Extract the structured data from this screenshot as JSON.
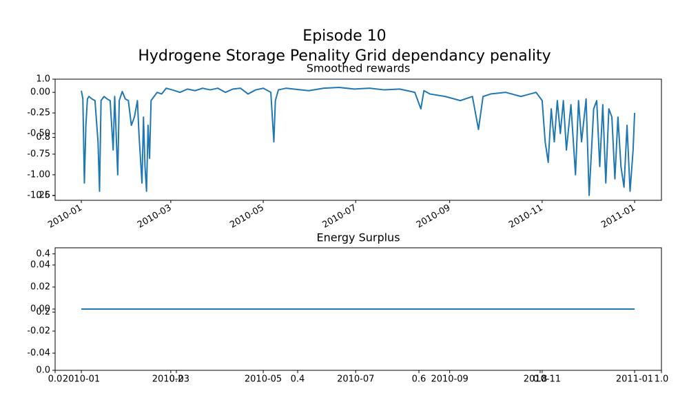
{
  "chart_data": [
    {
      "type": "line",
      "title": "Episode 10",
      "subtitle": "Hydrogene Storage Penality  Grid dependancy penality",
      "xlim": [
        0,
        1
      ],
      "ylim": [
        0,
        1
      ],
      "xticks": [
        {
          "value": 0,
          "label": "0.0"
        },
        0.2,
        0.4,
        0.6,
        0.8,
        {
          "value": 1,
          "label": "1.0"
        }
      ],
      "yticks": [
        {
          "value": 0,
          "label": "0.0"
        },
        0.2,
        0.4,
        0.6,
        0.8,
        {
          "value": 1,
          "label": "1.0"
        }
      ]
    },
    {
      "type": "line",
      "title": "Smoothed rewards",
      "x": [
        0,
        1,
        2,
        3,
        4,
        5,
        7,
        9,
        11,
        12,
        13,
        15,
        17,
        19,
        21,
        22,
        24,
        25,
        27,
        29,
        31,
        33,
        35,
        37,
        38,
        40,
        41,
        42,
        43,
        44,
        45,
        46,
        48,
        50,
        53,
        56,
        60,
        65,
        70,
        75,
        80,
        85,
        90,
        95,
        100,
        105,
        110,
        115,
        120,
        125,
        127,
        128,
        130,
        135,
        140,
        150,
        160,
        170,
        180,
        190,
        200,
        210,
        220,
        224,
        226,
        230,
        240,
        250,
        258,
        262,
        265,
        270,
        280,
        290,
        300,
        304,
        306,
        308,
        310,
        312,
        314,
        316,
        318,
        320,
        323,
        326,
        328,
        330,
        333,
        335,
        338,
        340,
        342,
        344,
        346,
        348,
        350,
        352,
        354,
        356,
        358,
        360,
        362,
        364,
        365
      ],
      "series": [
        {
          "color": "#1f77b4",
          "values": [
            0.02,
            -0.08,
            -1.1,
            -0.4,
            -0.08,
            -0.05,
            -0.08,
            -0.1,
            -0.6,
            -1.2,
            -0.1,
            -0.05,
            -0.08,
            -0.1,
            -0.7,
            -0.05,
            -1.0,
            -0.1,
            0.01,
            -0.08,
            -0.1,
            -0.4,
            -0.3,
            -0.1,
            -0.5,
            -1.1,
            -0.3,
            -0.9,
            -1.2,
            -0.4,
            -0.8,
            -0.1,
            -0.05,
            0.0,
            -0.02,
            0.05,
            0.03,
            0.0,
            0.04,
            0.02,
            0.05,
            0.03,
            0.05,
            0.0,
            0.04,
            0.05,
            -0.02,
            0.03,
            0.05,
            0.0,
            -0.6,
            -0.1,
            0.03,
            0.05,
            0.04,
            0.02,
            0.05,
            0.06,
            0.04,
            0.05,
            0.03,
            0.04,
            0.0,
            -0.2,
            0.02,
            -0.02,
            -0.05,
            -0.1,
            -0.05,
            -0.45,
            -0.05,
            -0.02,
            0.0,
            -0.05,
            0.0,
            -0.1,
            -0.6,
            -0.85,
            -0.2,
            -0.6,
            -0.1,
            -0.5,
            -0.1,
            -0.7,
            -0.15,
            -1.0,
            -0.1,
            -0.6,
            -0.08,
            -1.25,
            -0.2,
            -0.1,
            -0.9,
            -0.15,
            -1.1,
            -0.2,
            -0.3,
            -1.05,
            -0.3,
            -0.9,
            -1.15,
            -0.4,
            -1.2,
            -0.7,
            -0.25
          ]
        }
      ],
      "xlim": [
        -17.3,
        382.7
      ],
      "ylim": [
        -1.31,
        0.16
      ],
      "xticks": [
        {
          "value": 0,
          "label": "2010-01"
        },
        {
          "value": 59,
          "label": "2010-03"
        },
        {
          "value": 120,
          "label": "2010-05"
        },
        {
          "value": 181,
          "label": "2010-07"
        },
        {
          "value": 243,
          "label": "2010-09"
        },
        {
          "value": 304,
          "label": "2010-11"
        },
        {
          "value": 365,
          "label": "2011-01"
        }
      ],
      "yticks": [
        {
          "value": 0,
          "label": "0.00"
        },
        -0.25,
        {
          "value": -0.5,
          "label": "-0.50"
        },
        -0.75,
        {
          "value": -1,
          "label": "-1.00"
        },
        -1.25
      ]
    },
    {
      "type": "line",
      "title": "Energy Surplus",
      "x": [
        0,
        365
      ],
      "series": [
        {
          "color": "#1f77b4",
          "values": [
            0,
            0
          ]
        }
      ],
      "xlim": [
        -17.3,
        382.7
      ],
      "ylim": [
        -0.0556,
        0.0556
      ],
      "xticks": [
        {
          "value": 0,
          "label": "2010-01"
        },
        {
          "value": 59,
          "label": "2010-03"
        },
        {
          "value": 120,
          "label": "2010-05"
        },
        {
          "value": 181,
          "label": "2010-07"
        },
        {
          "value": 243,
          "label": "2010-09"
        },
        {
          "value": 304,
          "label": "2010-11"
        },
        {
          "value": 365,
          "label": "2011-01"
        }
      ],
      "yticks": [
        -0.04,
        -0.02,
        {
          "value": 0,
          "label": "0.00"
        },
        0.02,
        0.04
      ]
    }
  ]
}
